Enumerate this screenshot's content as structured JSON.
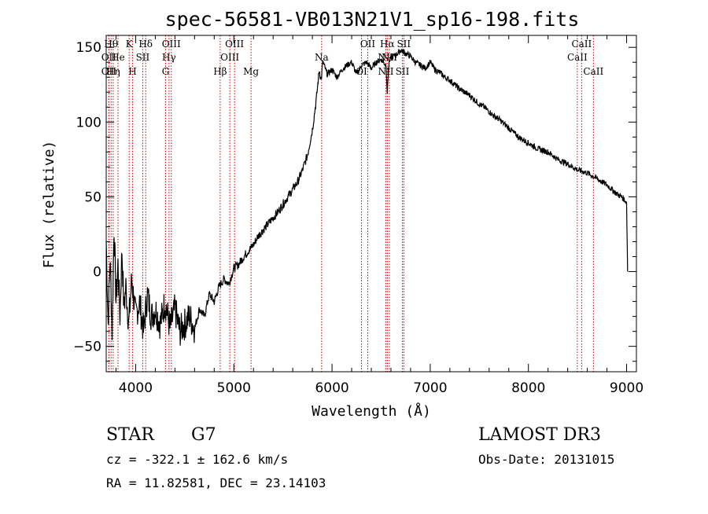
{
  "chart_data": {
    "type": "line",
    "title": "spec-56581-VB013N21V1_sp16-198.fits",
    "xlabel": "Wavelength (Å)",
    "ylabel": "Flux (relative)",
    "xlim": [
      3700,
      9100
    ],
    "ylim": [
      -67,
      158
    ],
    "xticks": [
      4000,
      5000,
      6000,
      7000,
      8000,
      9000
    ],
    "yticks": [
      -50,
      0,
      50,
      100,
      150
    ],
    "grid": false,
    "series": [
      {
        "name": "flux",
        "x": [
          3700,
          3720,
          3740,
          3760,
          3780,
          3800,
          3820,
          3840,
          3860,
          3880,
          3900,
          3930,
          3960,
          4000,
          4040,
          4080,
          4120,
          4160,
          4200,
          4250,
          4300,
          4350,
          4400,
          4450,
          4500,
          4550,
          4600,
          4650,
          4700,
          4750,
          4800,
          4850,
          4900,
          4950,
          5000,
          5050,
          5100,
          5150,
          5200,
          5250,
          5300,
          5350,
          5400,
          5450,
          5500,
          5550,
          5600,
          5650,
          5700,
          5750,
          5800,
          5840,
          5870,
          5890,
          5905,
          5920,
          5950,
          6000,
          6050,
          6100,
          6150,
          6200,
          6250,
          6300,
          6350,
          6400,
          6450,
          6500,
          6550,
          6563,
          6580,
          6600,
          6650,
          6700,
          6750,
          6800,
          6850,
          6900,
          6950,
          7000,
          7050,
          7100,
          7150,
          7200,
          7250,
          7300,
          7350,
          7400,
          7450,
          7500,
          7550,
          7600,
          7650,
          7700,
          7750,
          7800,
          7850,
          7900,
          7950,
          8000,
          8100,
          8200,
          8300,
          8400,
          8500,
          8600,
          8700,
          8800,
          8850,
          8900,
          8950,
          8980,
          9000,
          9010
        ],
        "y": [
          20,
          -35,
          10,
          -40,
          30,
          -20,
          5,
          -30,
          15,
          -25,
          -10,
          -35,
          -5,
          -30,
          -20,
          -40,
          -15,
          -30,
          -25,
          -35,
          -20,
          -38,
          -25,
          -40,
          -35,
          -30,
          -38,
          -25,
          -30,
          -15,
          -20,
          -10,
          -5,
          -8,
          2,
          5,
          10,
          14,
          18,
          24,
          28,
          32,
          36,
          40,
          45,
          50,
          55,
          60,
          68,
          78,
          95,
          115,
          135,
          128,
          140,
          138,
          132,
          135,
          130,
          135,
          138,
          140,
          132,
          138,
          140,
          136,
          140,
          142,
          138,
          120,
          140,
          143,
          145,
          148,
          146,
          144,
          140,
          138,
          136,
          140,
          135,
          133,
          130,
          128,
          125,
          122,
          120,
          118,
          115,
          112,
          110,
          107,
          104,
          102,
          99,
          96,
          93,
          90,
          88,
          86,
          82,
          80,
          75,
          72,
          68,
          66,
          62,
          58,
          55,
          52,
          50,
          48,
          46,
          0
        ]
      }
    ],
    "lines": [
      {
        "label": "OII",
        "wl": 3727,
        "row": 1
      },
      {
        "label": "OII",
        "wl": 3727,
        "row": 2
      },
      {
        "label": "Hθ",
        "wl": 3750,
        "row": 0
      },
      {
        "label": "Hη",
        "wl": 3771,
        "row": 2
      },
      {
        "label": "He",
        "wl": 3820,
        "row": 1
      },
      {
        "label": "K",
        "wl": 3934,
        "row": 0
      },
      {
        "label": "H",
        "wl": 3968,
        "row": 2
      },
      {
        "label": "SII",
        "wl": 4072,
        "row": 1
      },
      {
        "label": "Hδ",
        "wl": 4102,
        "row": 0
      },
      {
        "label": "G",
        "wl": 4305,
        "row": 2
      },
      {
        "label": "Hγ",
        "wl": 4340,
        "row": 1
      },
      {
        "label": "OIII",
        "wl": 4363,
        "row": 0
      },
      {
        "label": "Hβ",
        "wl": 4861,
        "row": 2
      },
      {
        "label": "OIII",
        "wl": 4959,
        "row": 1
      },
      {
        "label": "OIII",
        "wl": 5007,
        "row": 0
      },
      {
        "label": "Mg",
        "wl": 5175,
        "row": 2
      },
      {
        "label": "Na",
        "wl": 5894,
        "row": 1
      },
      {
        "label": "OI",
        "wl": 6300,
        "row": 2
      },
      {
        "label": "OII",
        "wl": 6364,
        "row": 0
      },
      {
        "label": "NII",
        "wl": 6548,
        "row": 2
      },
      {
        "label": "NII",
        "wl": 6548,
        "row": 1
      },
      {
        "label": "Hα",
        "wl": 6563,
        "row": 0
      },
      {
        "label": "NII",
        "wl": 6584,
        "row": 1
      },
      {
        "label": "SII",
        "wl": 6717,
        "row": 2
      },
      {
        "label": "SII",
        "wl": 6731,
        "row": 0
      },
      {
        "label": "CaII",
        "wl": 8498,
        "row": 1
      },
      {
        "label": "CaII",
        "wl": 8542,
        "row": 0
      },
      {
        "label": "CaII",
        "wl": 8662,
        "row": 2
      }
    ]
  },
  "info": {
    "class": "STAR",
    "subclass": "G7",
    "survey": "LAMOST DR3",
    "cz": "cz = -322.1 ± 162.6 km/s",
    "obs_date": "Obs-Date: 20131015",
    "coords": "RA =  11.82581, DEC =  23.14103"
  }
}
